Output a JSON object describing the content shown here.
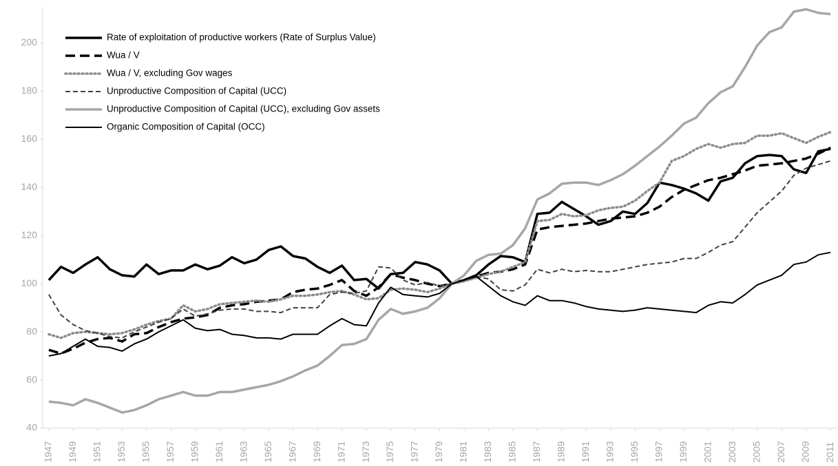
{
  "chart_data": {
    "type": "line",
    "x": [
      1947,
      1948,
      1949,
      1950,
      1951,
      1952,
      1953,
      1954,
      1955,
      1956,
      1957,
      1958,
      1959,
      1960,
      1961,
      1962,
      1963,
      1964,
      1965,
      1966,
      1967,
      1968,
      1969,
      1970,
      1971,
      1972,
      1973,
      1974,
      1975,
      1976,
      1977,
      1978,
      1979,
      1980,
      1981,
      1982,
      1983,
      1984,
      1985,
      1986,
      1987,
      1988,
      1989,
      1990,
      1991,
      1992,
      1993,
      1994,
      1995,
      1996,
      1997,
      1998,
      1999,
      2000,
      2001,
      2002,
      2003,
      2004,
      2005,
      2006,
      2007,
      2008,
      2009,
      2010,
      2011
    ],
    "xlim": [
      1946.5,
      2011.5
    ],
    "xticks": [
      1947,
      1949,
      1951,
      1953,
      1955,
      1957,
      1959,
      1961,
      1963,
      1965,
      1967,
      1969,
      1971,
      1973,
      1975,
      1977,
      1979,
      1981,
      1983,
      1985,
      1987,
      1989,
      1991,
      1993,
      1995,
      1997,
      1999,
      2001,
      2003,
      2005,
      2007,
      2009,
      2011
    ],
    "ylim": [
      40,
      215
    ],
    "yticks": [
      40,
      60,
      80,
      100,
      120,
      140,
      160,
      180,
      200
    ],
    "legend": "upper left",
    "series": [
      {
        "name": "Rate of exploitation of productive workers (Rate of Surplus Value)",
        "color": "#000000",
        "style": "solid",
        "bold": true,
        "values": [
          101.5,
          107,
          104.5,
          108,
          111,
          106,
          103.5,
          103,
          108,
          104,
          105.5,
          105.5,
          108,
          106,
          107.5,
          111,
          108.5,
          110,
          114,
          115.5,
          111.5,
          110.5,
          107,
          104.5,
          107.5,
          101.5,
          102,
          98,
          104,
          104.5,
          109,
          108,
          105.5,
          100,
          101.5,
          103.5,
          108,
          111.5,
          111,
          109,
          129,
          129.5,
          134,
          131,
          128,
          124.5,
          126,
          130,
          129,
          133.5,
          142,
          141,
          139.5,
          137.5,
          134.5,
          142.5,
          144,
          150,
          153,
          153.5,
          153,
          147.5,
          146,
          155,
          156
        ]
      },
      {
        "name": "Wua / V",
        "color": "#000000",
        "style": "dashed",
        "bold": true,
        "values": [
          72.5,
          71,
          73,
          75.5,
          77,
          77.5,
          76,
          79,
          79.5,
          82,
          84,
          85.5,
          86,
          87,
          90,
          91,
          91.5,
          92.5,
          93,
          93.5,
          96.5,
          97.5,
          98,
          99.5,
          101.5,
          97,
          95,
          98.5,
          104,
          102.5,
          101.5,
          100,
          99,
          100,
          101.5,
          103,
          104.5,
          105,
          106,
          108,
          122.5,
          123.5,
          124,
          124.5,
          125,
          126,
          127,
          127.5,
          128,
          129.5,
          132,
          136,
          139,
          141,
          143,
          144,
          145.5,
          147,
          149,
          149.5,
          150,
          151,
          152,
          154,
          156.5
        ]
      },
      {
        "name": "Wua / V, excluding Gov wages",
        "color": "#8c8c8c",
        "style": "dotted",
        "bold": true,
        "values": [
          79,
          77.5,
          79.5,
          80,
          79.5,
          79,
          79.5,
          81,
          83,
          84.5,
          85.5,
          91,
          88.5,
          89.5,
          91.5,
          92,
          92.5,
          93,
          92.5,
          93.5,
          95,
          95,
          95.5,
          96.5,
          97,
          95.5,
          93.5,
          94,
          97.5,
          98,
          97.5,
          96.5,
          98,
          100,
          101,
          102.5,
          104,
          105,
          107,
          109,
          126,
          126.5,
          129,
          128,
          128.5,
          130.5,
          131.5,
          132,
          134.5,
          138.5,
          142,
          151,
          153,
          156,
          158,
          156.5,
          158,
          158.5,
          161.5,
          161.5,
          162.5,
          160.5,
          158.5,
          161,
          163
        ]
      },
      {
        "name": "Unproductive Composition of Capital (UCC)",
        "color": "#404040",
        "style": "dashed",
        "bold": false,
        "values": [
          95.5,
          87,
          83,
          80.5,
          79.5,
          78,
          77.5,
          80,
          82,
          84,
          85.5,
          89.5,
          86.5,
          87.5,
          89,
          89.5,
          89.5,
          88.5,
          88.5,
          88,
          90,
          90,
          90,
          95.5,
          96.5,
          96,
          97,
          107,
          106.5,
          101.5,
          99.5,
          100.5,
          99,
          100,
          101.5,
          103,
          102,
          97.5,
          97,
          99.5,
          106,
          104.5,
          106,
          105,
          105.5,
          105,
          105,
          106,
          107,
          108,
          108.5,
          109,
          110.5,
          110.5,
          113,
          116,
          117.5,
          123.5,
          129.5,
          134,
          138.5,
          145,
          148,
          149.5,
          151
        ]
      },
      {
        "name": "Unproductive Composition of Capital (UCC), excluding Gov assets",
        "color": "#a6a6a6",
        "style": "solid",
        "bold": true,
        "values": [
          51,
          50.5,
          49.5,
          52,
          50.5,
          48.5,
          46.5,
          47.5,
          49.5,
          52,
          53.5,
          55,
          53.5,
          53.5,
          55,
          55,
          56,
          57,
          58,
          59.5,
          61.5,
          64,
          66,
          70,
          74.5,
          75,
          77,
          85,
          89.5,
          87.5,
          88.5,
          90,
          94,
          100,
          103.5,
          109.5,
          112,
          112.5,
          116,
          123,
          135,
          137.5,
          141.5,
          142,
          142,
          141,
          143,
          145.5,
          149,
          153,
          157,
          161.5,
          166.5,
          169,
          175,
          179.5,
          182,
          190,
          199,
          204.5,
          206.5,
          213,
          214,
          212.5,
          212
        ]
      },
      {
        "name": "Organic Composition of Capital (OCC)",
        "color": "#000000",
        "style": "solid",
        "bold": false,
        "values": [
          70,
          71,
          74,
          77,
          74,
          73.5,
          72,
          75,
          77,
          80,
          82.5,
          85,
          81.5,
          80.5,
          81,
          79,
          78.5,
          77.5,
          77.5,
          77,
          79,
          79,
          79,
          82.5,
          85.5,
          83,
          82.5,
          92,
          98.5,
          95.5,
          95,
          94.5,
          96,
          100,
          101.5,
          103,
          99,
          95,
          92.5,
          91,
          95,
          93,
          93,
          92,
          90.5,
          89.5,
          89,
          88.5,
          89,
          90,
          89.5,
          89,
          88.5,
          88,
          91,
          92.5,
          92,
          95.5,
          99.5,
          101.5,
          103.5,
          108,
          109,
          112,
          113
        ]
      }
    ]
  }
}
